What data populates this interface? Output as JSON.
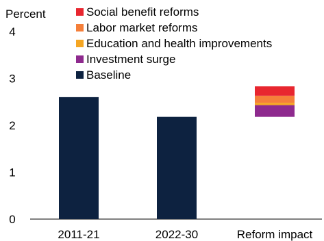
{
  "chart_data": {
    "type": "bar",
    "stacked": true,
    "ylabel": "Percent",
    "ylim": [
      0,
      4
    ],
    "yticks": [
      "0",
      "1",
      "2",
      "3",
      "4"
    ],
    "categories": [
      "2011-21",
      "2022-30",
      "Reform impact"
    ],
    "grid": false,
    "legend_position": "top-right",
    "series": [
      {
        "name": "Baseline",
        "color": "#0d2240",
        "values": [
          2.6,
          2.18,
          0
        ]
      },
      {
        "name": "Investment surge",
        "color": "#8e2a8e",
        "values": [
          0,
          0,
          0.25
        ]
      },
      {
        "name": "Education and health improvements",
        "color": "#f5a623",
        "values": [
          0,
          0,
          0.05
        ]
      },
      {
        "name": "Labor market reforms",
        "color": "#f57f3a",
        "values": [
          0,
          0,
          0.15
        ]
      },
      {
        "name": "Social benefit reforms",
        "color": "#e8262f",
        "values": [
          0,
          0,
          0.2
        ]
      }
    ],
    "reform_base": 2.18,
    "legend": [
      {
        "label": "Social benefit reforms",
        "color": "#e8262f"
      },
      {
        "label": "Labor market reforms",
        "color": "#f57f3a"
      },
      {
        "label": "Education and health improvements",
        "color": "#f5a623"
      },
      {
        "label": "Investment surge",
        "color": "#8e2a8e"
      },
      {
        "label": "Baseline",
        "color": "#0d2240"
      }
    ]
  }
}
